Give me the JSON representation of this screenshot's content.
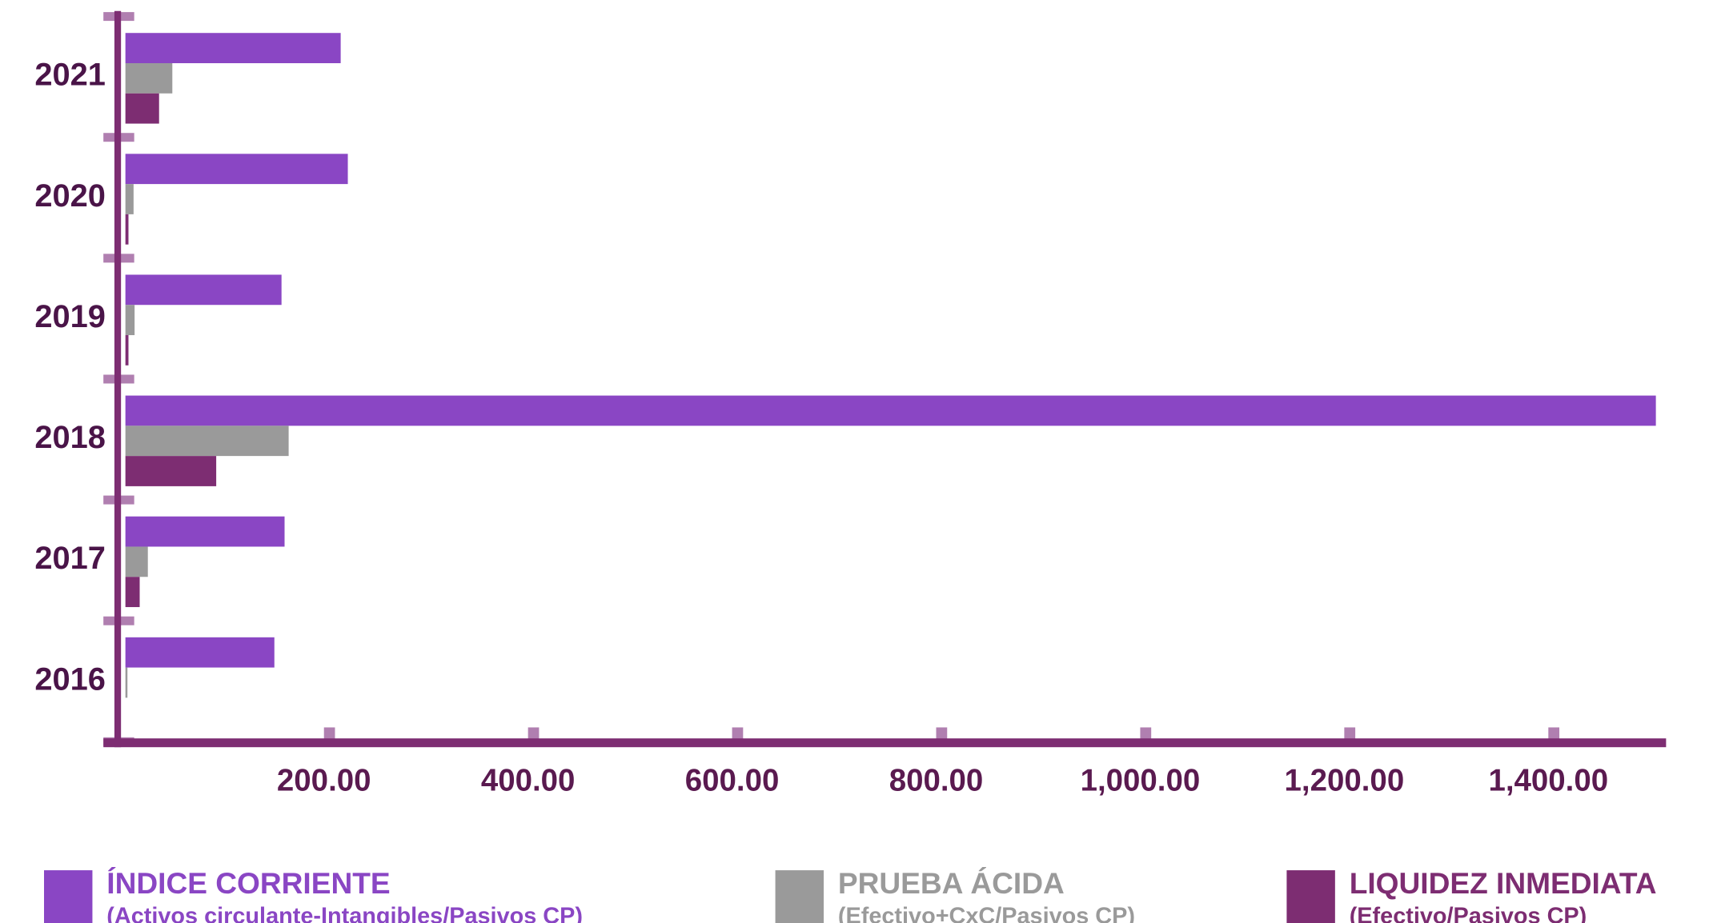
{
  "chart_data": {
    "type": "hbar",
    "categories": [
      "2021",
      "2020",
      "2019",
      "2018",
      "2017",
      "2016"
    ],
    "series": [
      {
        "name": "ÍNDICE CORRIENTE",
        "note": "(Activos circulante-Intangibles/Pasivos CP)",
        "color": "#8a46c4",
        "values": [
          211,
          218,
          153,
          1500,
          156,
          146
        ]
      },
      {
        "name": "PRUEBA ÁCIDA",
        "note": "(Efectivo+CxC/Pasivos CP)",
        "color": "#9a9a9a",
        "values": [
          46,
          8,
          9,
          160,
          22,
          2
        ]
      },
      {
        "name": "LIQUIDEZ INMEDIATA",
        "note": "(Efectivo/Pasivos CP)",
        "color": "#7d2d72",
        "values": [
          33,
          3,
          3,
          89,
          14,
          0
        ]
      }
    ],
    "xlim": [
      0,
      1510
    ],
    "xticks": [
      {
        "value": 200,
        "label": "200.00"
      },
      {
        "value": 400,
        "label": "400.00"
      },
      {
        "value": 600,
        "label": "600.00"
      },
      {
        "value": 800,
        "label": "800.00"
      },
      {
        "value": 1000,
        "label": "1,000.00"
      },
      {
        "value": 1200,
        "label": "1,200.00"
      },
      {
        "value": 1400,
        "label": "1,400.00"
      }
    ],
    "legend": "bottom"
  }
}
